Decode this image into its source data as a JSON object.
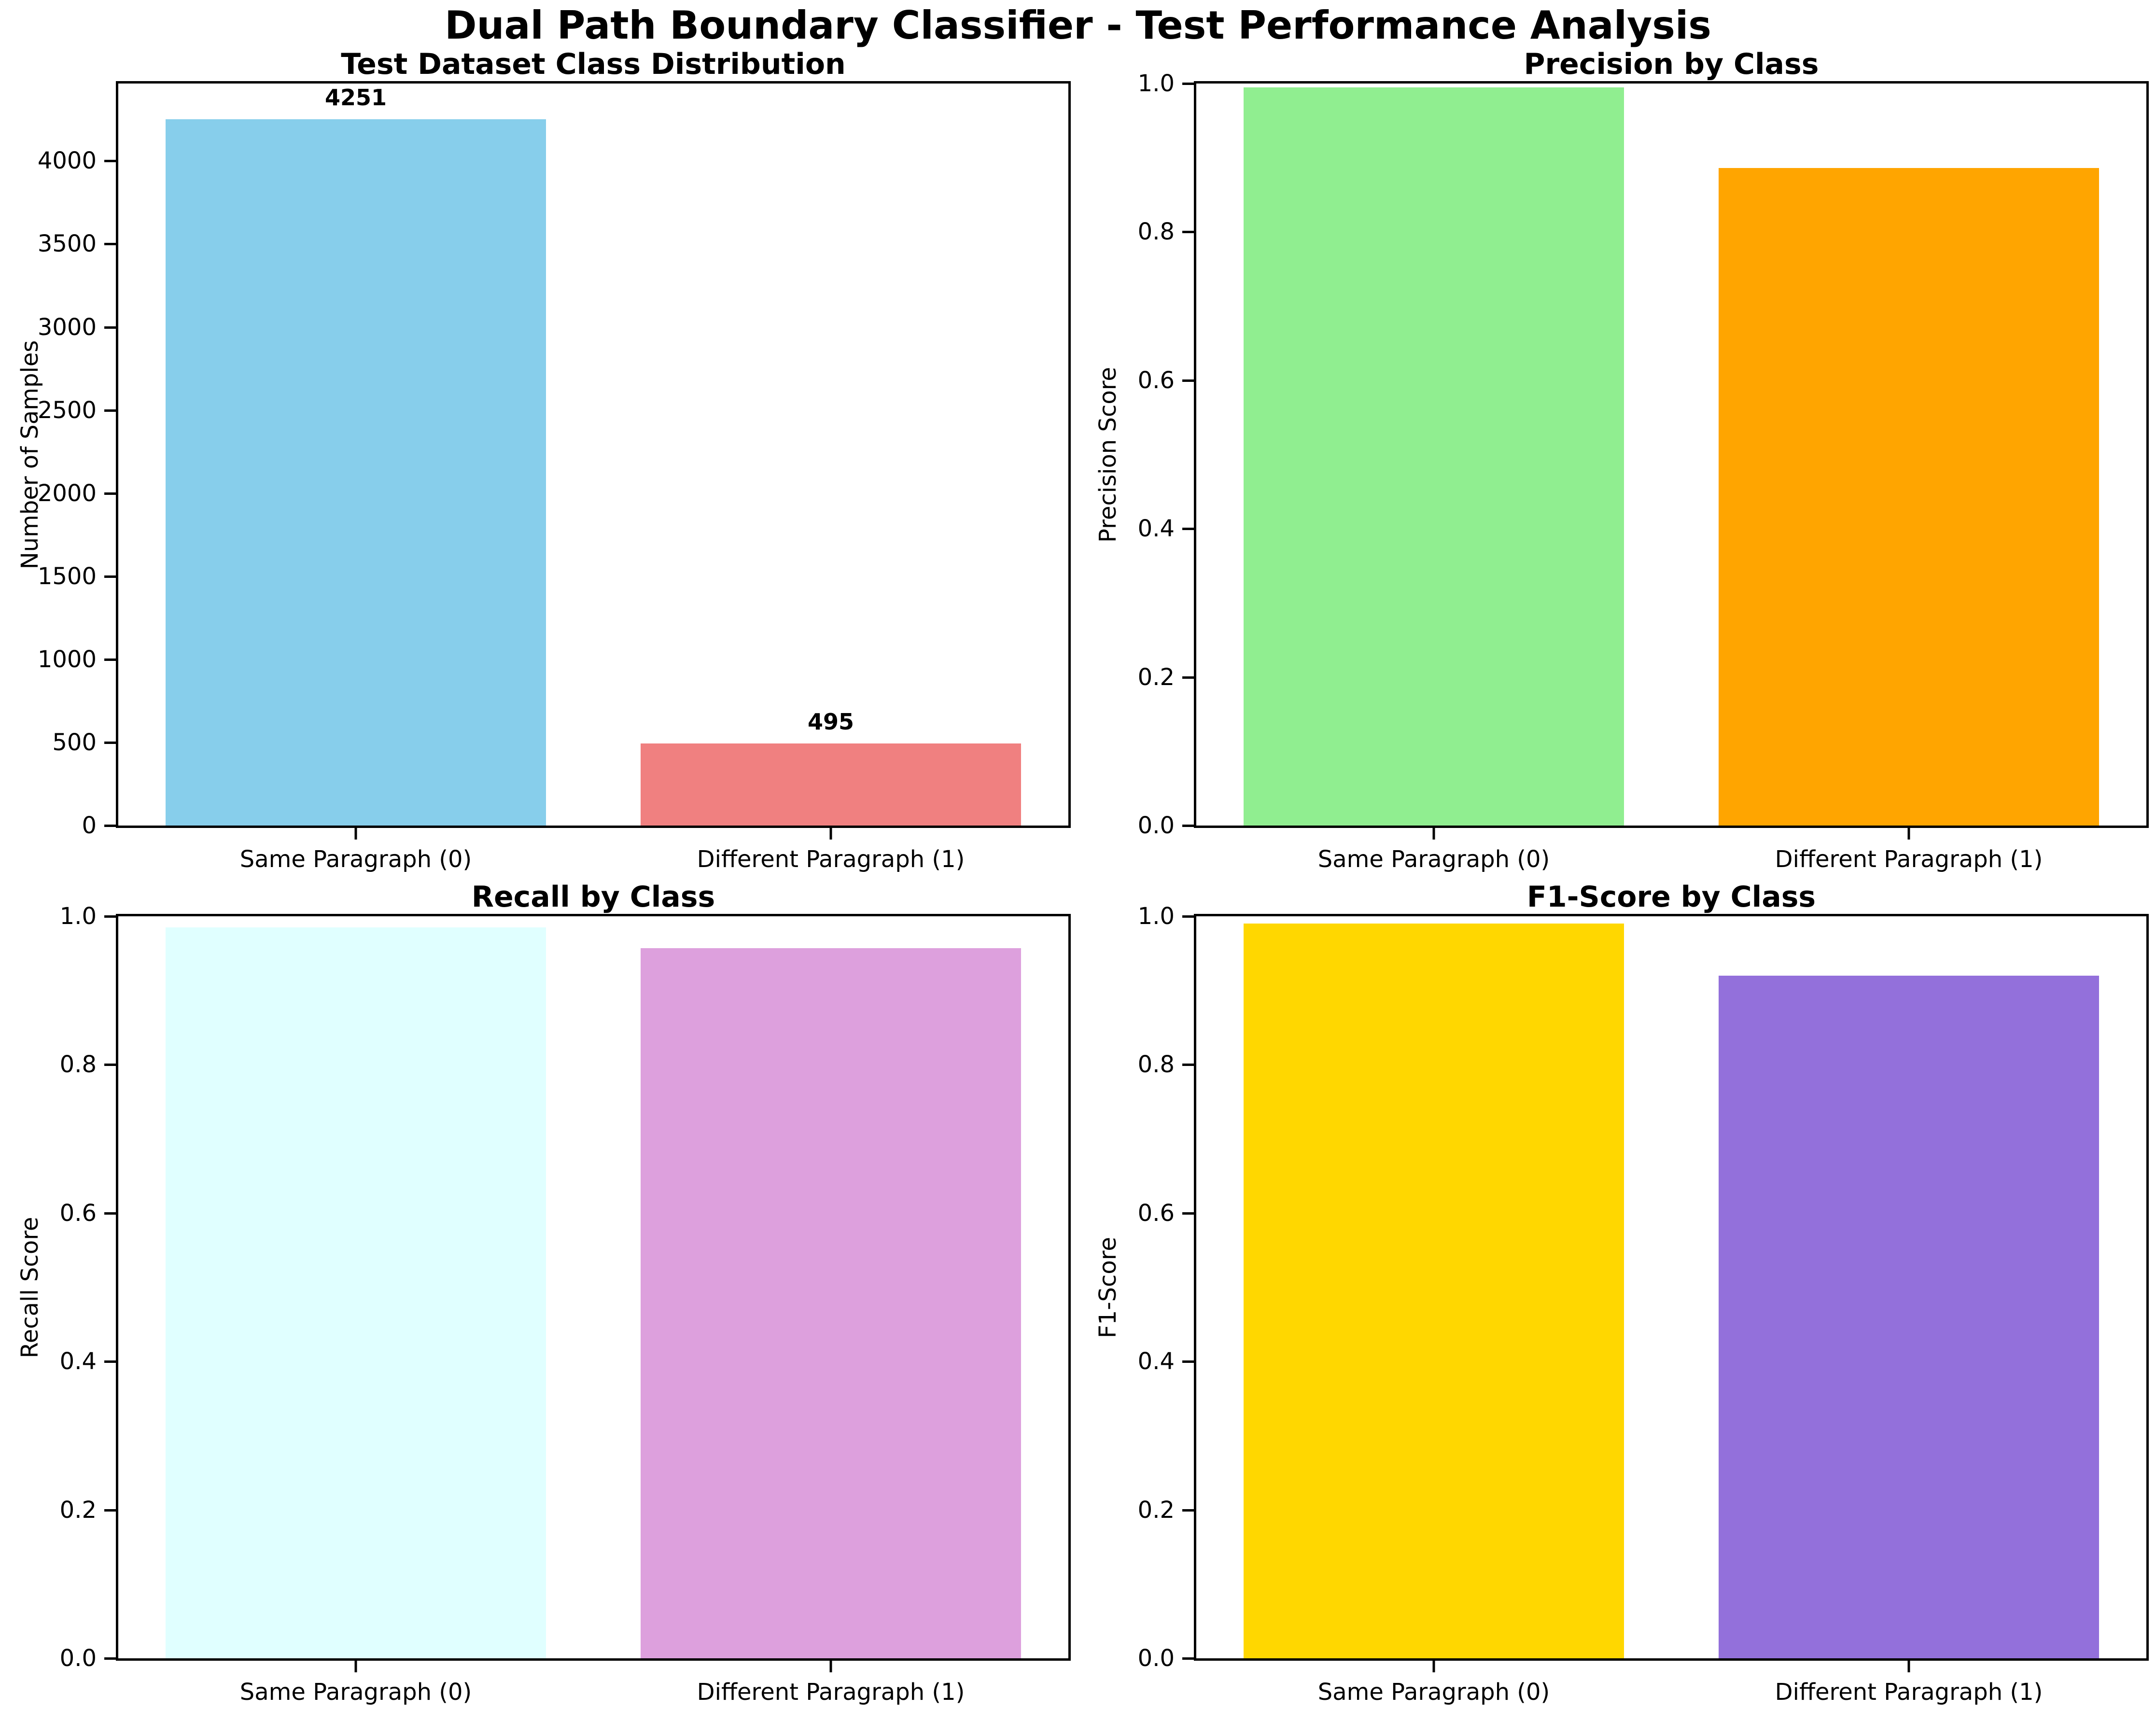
{
  "figure": {
    "title": "Dual Path Boundary Classifier - Test Performance Analysis",
    "background_color": "#ffffff",
    "text_color": "#000000"
  },
  "chart_data": [
    {
      "id": "class-distribution",
      "type": "bar",
      "title": "Test Dataset Class Distribution",
      "xlabel": "",
      "ylabel": "Number of Samples",
      "categories": [
        "Same Paragraph (0)",
        "Different Paragraph (1)"
      ],
      "values": [
        4251,
        495
      ],
      "bar_labels": [
        "4251",
        "495"
      ],
      "show_bar_labels": true,
      "bar_colors": [
        "#87CEEB",
        "#F08080"
      ],
      "ylim": [
        0,
        4466
      ],
      "yticks": [
        0,
        500,
        1000,
        1500,
        2000,
        2500,
        3000,
        3500,
        4000
      ],
      "ytick_labels": [
        "0",
        "500",
        "1000",
        "1500",
        "2000",
        "2500",
        "3000",
        "3500",
        "4000"
      ],
      "grid": false,
      "legend": null
    },
    {
      "id": "precision-by-class",
      "type": "bar",
      "title": "Precision by Class",
      "xlabel": "",
      "ylabel": "Precision Score",
      "categories": [
        "Same Paragraph (0)",
        "Different Paragraph (1)"
      ],
      "values": [
        0.995,
        0.886
      ],
      "bar_labels": [],
      "show_bar_labels": false,
      "bar_colors": [
        "#90EE90",
        "#FFA500"
      ],
      "ylim": [
        0,
        1.0
      ],
      "yticks": [
        0.0,
        0.2,
        0.4,
        0.6,
        0.8,
        1.0
      ],
      "ytick_labels": [
        "0.0",
        "0.2",
        "0.4",
        "0.6",
        "0.8",
        "1.0"
      ],
      "grid": false,
      "legend": null
    },
    {
      "id": "recall-by-class",
      "type": "bar",
      "title": "Recall by Class",
      "xlabel": "",
      "ylabel": "Recall Score",
      "categories": [
        "Same Paragraph (0)",
        "Different Paragraph (1)"
      ],
      "values": [
        0.985,
        0.957
      ],
      "bar_labels": [],
      "show_bar_labels": false,
      "bar_colors": [
        "#E0FFFF",
        "#DDA0DD"
      ],
      "ylim": [
        0,
        1.0
      ],
      "yticks": [
        0.0,
        0.2,
        0.4,
        0.6,
        0.8,
        1.0
      ],
      "ytick_labels": [
        "0.0",
        "0.2",
        "0.4",
        "0.6",
        "0.8",
        "1.0"
      ],
      "grid": false,
      "legend": null
    },
    {
      "id": "f1-by-class",
      "type": "bar",
      "title": "F1-Score by Class",
      "xlabel": "",
      "ylabel": "F1-Score",
      "categories": [
        "Same Paragraph (0)",
        "Different Paragraph (1)"
      ],
      "values": [
        0.99,
        0.92
      ],
      "bar_labels": [],
      "show_bar_labels": false,
      "bar_colors": [
        "#FFD700",
        "#9370DB"
      ],
      "ylim": [
        0,
        1.0
      ],
      "yticks": [
        0.0,
        0.2,
        0.4,
        0.6,
        0.8,
        1.0
      ],
      "ytick_labels": [
        "0.0",
        "0.2",
        "0.4",
        "0.6",
        "0.8",
        "1.0"
      ],
      "grid": false,
      "legend": null
    }
  ]
}
